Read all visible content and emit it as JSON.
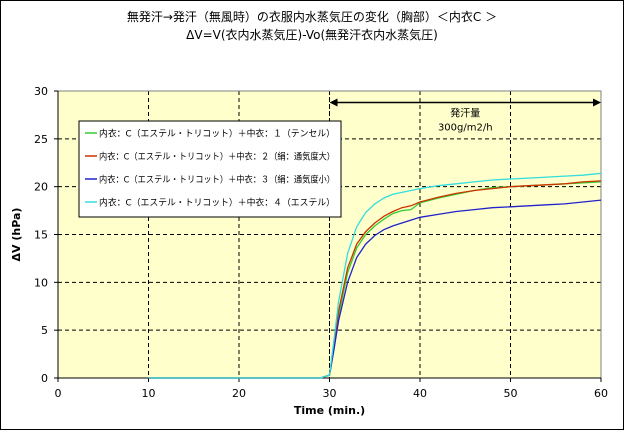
{
  "chart_data": {
    "type": "line",
    "title": "無発汗→発汗（無風時）の衣服内水蒸気圧の変化（胸部）＜内衣C ＞",
    "subtitle": "ΔV=V(衣内水蒸気圧)-Vo(無発汗衣内水蒸気圧)",
    "xlabel": "Time (min.)",
    "ylabel": "ΔV (hPa)",
    "xlim": [
      0,
      60
    ],
    "ylim": [
      0,
      30
    ],
    "xticks": [
      "0",
      "10",
      "20",
      "30",
      "40",
      "50",
      "60"
    ],
    "yticks": [
      "0",
      "5",
      "10",
      "15",
      "20",
      "25",
      "30"
    ],
    "grid": true,
    "legend_position": "upper-left",
    "annotation": {
      "lines": [
        "発汗量",
        "300g/m2/h"
      ],
      "arrow_from": 30,
      "arrow_to": 60,
      "arrow_y": 28.8
    },
    "series": [
      {
        "name": "内衣：C（エステル・トリコット）＋中衣：１（テンセル）",
        "color": "#33cc33",
        "x": [
          10,
          20,
          29,
          30,
          30.5,
          31,
          32,
          33,
          34,
          35,
          36,
          37,
          38,
          39,
          40,
          42,
          44,
          46,
          48,
          50,
          52,
          54,
          56,
          58,
          60
        ],
        "y": [
          0,
          0,
          0,
          0.3,
          3.0,
          6.5,
          11.0,
          13.6,
          15.0,
          15.9,
          16.6,
          17.2,
          17.5,
          17.6,
          18.3,
          18.8,
          19.2,
          19.6,
          19.9,
          20.0,
          20.1,
          20.2,
          20.3,
          20.4,
          20.5
        ]
      },
      {
        "name": "内衣：C（エステル・トリコット）＋中衣：２（絹：通気度大）",
        "color": "#cc3300",
        "x": [
          10,
          20,
          29,
          30,
          30.5,
          31,
          32,
          33,
          34,
          35,
          36,
          37,
          38,
          39,
          40,
          42,
          44,
          46,
          48,
          50,
          52,
          54,
          56,
          58,
          60
        ],
        "y": [
          0,
          0,
          0,
          0.3,
          3.5,
          7.0,
          11.5,
          14.0,
          15.3,
          16.2,
          16.9,
          17.4,
          17.8,
          18.0,
          18.4,
          18.9,
          19.3,
          19.6,
          19.8,
          20.0,
          20.1,
          20.2,
          20.3,
          20.5,
          20.6
        ]
      },
      {
        "name": "内衣：C（エステル・トリコット）＋中衣：３（絹：通気度小）",
        "color": "#2222cc",
        "x": [
          10,
          20,
          29,
          30,
          30.5,
          31,
          32,
          33,
          34,
          35,
          36,
          37,
          38,
          39,
          40,
          42,
          44,
          46,
          48,
          50,
          52,
          54,
          56,
          58,
          60
        ],
        "y": [
          0,
          0,
          0,
          0.3,
          3.0,
          6.0,
          10.0,
          12.6,
          14.0,
          14.9,
          15.5,
          15.9,
          16.2,
          16.5,
          16.8,
          17.1,
          17.4,
          17.6,
          17.8,
          17.9,
          18.0,
          18.1,
          18.2,
          18.4,
          18.6
        ]
      },
      {
        "name": "内衣：C（エステル・トリコット）＋中衣：４（エステル）",
        "color": "#33dddd",
        "x": [
          10,
          20,
          29,
          30,
          30.5,
          31,
          32,
          33,
          34,
          35,
          36,
          37,
          38,
          39,
          40,
          42,
          44,
          46,
          48,
          50,
          52,
          54,
          56,
          58,
          60
        ],
        "y": [
          0,
          0,
          0,
          0.3,
          4.0,
          8.0,
          13.0,
          15.8,
          17.3,
          18.2,
          18.8,
          19.2,
          19.4,
          19.6,
          19.8,
          20.1,
          20.3,
          20.5,
          20.7,
          20.8,
          20.9,
          21.0,
          21.1,
          21.2,
          21.4
        ]
      }
    ]
  }
}
